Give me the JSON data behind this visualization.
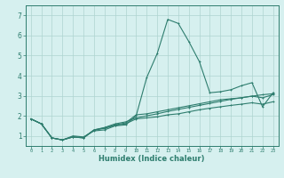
{
  "x": [
    0,
    1,
    2,
    3,
    4,
    5,
    6,
    7,
    8,
    9,
    10,
    11,
    12,
    13,
    14,
    15,
    16,
    17,
    18,
    19,
    20,
    21,
    22,
    23
  ],
  "line1": [
    1.85,
    1.6,
    0.9,
    0.8,
    1.0,
    0.95,
    1.25,
    1.3,
    1.5,
    1.55,
    2.0,
    3.9,
    5.1,
    6.8,
    6.6,
    5.7,
    4.7,
    3.15,
    3.2,
    3.3,
    3.5,
    3.65,
    2.45,
    3.15
  ],
  "line2": [
    1.85,
    1.6,
    0.9,
    0.8,
    0.95,
    0.92,
    1.3,
    1.4,
    1.55,
    1.65,
    2.05,
    2.1,
    2.2,
    2.3,
    2.4,
    2.5,
    2.6,
    2.7,
    2.8,
    2.85,
    2.9,
    2.98,
    3.05,
    3.1
  ],
  "line3": [
    1.85,
    1.6,
    0.9,
    0.8,
    0.95,
    0.9,
    1.28,
    1.38,
    1.52,
    1.6,
    1.85,
    1.9,
    1.95,
    2.05,
    2.1,
    2.2,
    2.3,
    2.38,
    2.45,
    2.52,
    2.58,
    2.65,
    2.58,
    2.7
  ],
  "line4": [
    1.85,
    1.6,
    0.9,
    0.8,
    0.95,
    0.9,
    1.3,
    1.42,
    1.6,
    1.7,
    1.9,
    2.0,
    2.1,
    2.22,
    2.32,
    2.42,
    2.52,
    2.62,
    2.72,
    2.82,
    2.9,
    2.98,
    2.9,
    3.05
  ],
  "bg_color": "#d6f0ef",
  "line_color": "#2e7d6e",
  "grid_color": "#aed4d0",
  "ylabel_values": [
    1,
    2,
    3,
    4,
    5,
    6,
    7
  ],
  "xlabel": "Humidex (Indice chaleur)",
  "xlim": [
    -0.5,
    23.5
  ],
  "ylim": [
    0.5,
    7.5
  ],
  "xtick_labels": [
    "0",
    "1",
    "2",
    "3",
    "4",
    "5",
    "6",
    "7",
    "8",
    "9",
    "10",
    "11",
    "12",
    "13",
    "14",
    "15",
    "16",
    "17",
    "18",
    "19",
    "20",
    "21",
    "22",
    "23"
  ]
}
